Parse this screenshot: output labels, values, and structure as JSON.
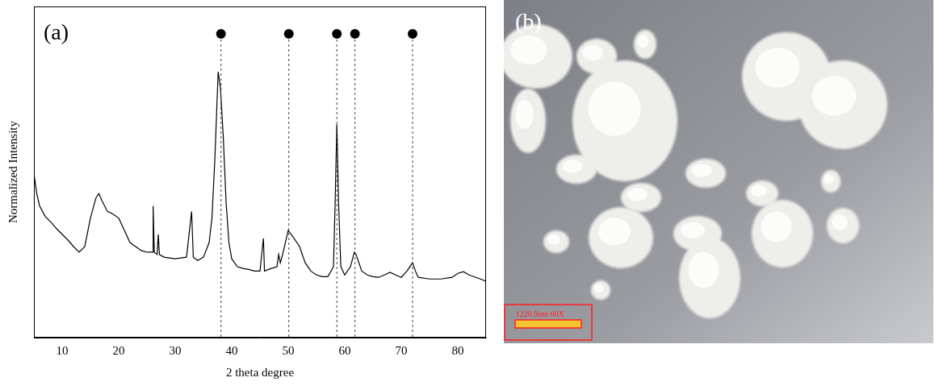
{
  "chart_data": {
    "type": "line",
    "panel": "(a)",
    "x_label": "2 theta degree",
    "y_label": "Normalized Intensity",
    "x": [
      5,
      5.5,
      6,
      7,
      8,
      9,
      10,
      11,
      12,
      13,
      14,
      15,
      16,
      16.5,
      17,
      18,
      19,
      20,
      21,
      22,
      23,
      24,
      25,
      26,
      26.1,
      26.3,
      26.8,
      27.0,
      27.2,
      28,
      30,
      32,
      32.9,
      33.2,
      34,
      35,
      36,
      36.5,
      37,
      37.6,
      38,
      38.5,
      39,
      39.5,
      40,
      41,
      42,
      43,
      44,
      45,
      45.6,
      45.8,
      47,
      48,
      48.3,
      48.6,
      49,
      50,
      50.5,
      51,
      52,
      53,
      54,
      55,
      56,
      57,
      58,
      58.3,
      58.6,
      58.9,
      59.3,
      60,
      61,
      61.7,
      62,
      63,
      64,
      65,
      66,
      67,
      68,
      69,
      70,
      71,
      72,
      72.5,
      73,
      75,
      77,
      79,
      80,
      81,
      82,
      84,
      85
    ],
    "values": [
      0.496,
      0.435,
      0.398,
      0.366,
      0.349,
      0.329,
      0.312,
      0.295,
      0.275,
      0.258,
      0.275,
      0.361,
      0.423,
      0.435,
      0.415,
      0.381,
      0.373,
      0.361,
      0.324,
      0.287,
      0.275,
      0.263,
      0.258,
      0.258,
      0.398,
      0.258,
      0.251,
      0.312,
      0.251,
      0.243,
      0.238,
      0.243,
      0.381,
      0.243,
      0.233,
      0.243,
      0.287,
      0.361,
      0.533,
      0.803,
      0.754,
      0.607,
      0.41,
      0.287,
      0.238,
      0.214,
      0.209,
      0.206,
      0.201,
      0.201,
      0.3,
      0.201,
      0.209,
      0.214,
      0.251,
      0.226,
      0.251,
      0.324,
      0.312,
      0.3,
      0.275,
      0.226,
      0.201,
      0.189,
      0.184,
      0.184,
      0.214,
      0.41,
      0.644,
      0.41,
      0.214,
      0.189,
      0.214,
      0.258,
      0.251,
      0.201,
      0.189,
      0.184,
      0.182,
      0.189,
      0.197,
      0.189,
      0.182,
      0.201,
      0.226,
      0.201,
      0.182,
      0.177,
      0.177,
      0.182,
      0.194,
      0.199,
      0.189,
      0.177,
      0.17
    ],
    "color": "#000000",
    "xlim": [
      5,
      85
    ],
    "xticks": [
      10,
      20,
      30,
      40,
      50,
      60,
      70,
      80
    ],
    "ylim": [
      0,
      1
    ],
    "tick_labels": "x",
    "grid": false,
    "reference_peaks": [
      38.1,
      50.1,
      58.6,
      61.8,
      72.0
    ]
  },
  "image": {
    "panel": "(b)",
    "scale_bar": "1220.9um 60X"
  }
}
